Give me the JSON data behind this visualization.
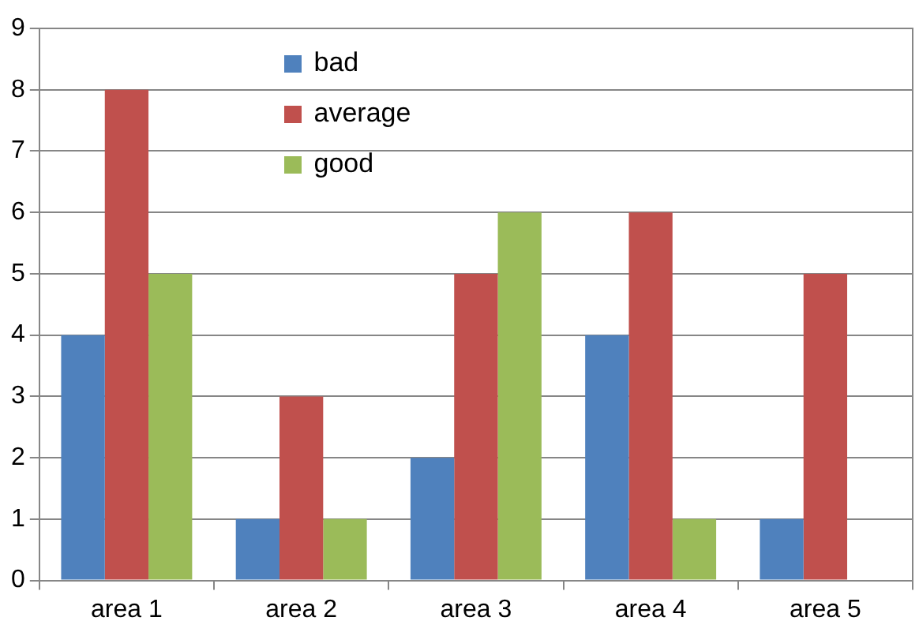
{
  "chart_data": {
    "type": "bar",
    "categories": [
      "area 1",
      "area 2",
      "area 3",
      "area 4",
      "area 5"
    ],
    "series": [
      {
        "name": "bad",
        "color": "#4f81bd",
        "values": [
          4,
          1,
          2,
          4,
          1
        ]
      },
      {
        "name": "average",
        "color": "#c0504d",
        "values": [
          8,
          3,
          5,
          6,
          5
        ]
      },
      {
        "name": "good",
        "color": "#9bbb59",
        "values": [
          5,
          1,
          6,
          1,
          0
        ]
      }
    ],
    "ylim": [
      0,
      9
    ],
    "yticks": [
      0,
      1,
      2,
      3,
      4,
      5,
      6,
      7,
      8,
      9
    ],
    "grid": "y",
    "legend": "top left"
  }
}
